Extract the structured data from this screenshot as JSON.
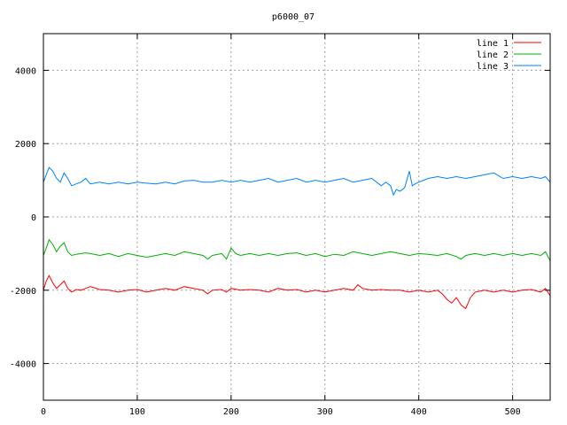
{
  "chart_data": {
    "type": "line",
    "title": "p6000_07",
    "xlabel": "",
    "ylabel": "",
    "xlim": [
      0,
      540
    ],
    "ylim": [
      -5000,
      5000
    ],
    "x_ticks": [
      0,
      100,
      200,
      300,
      400,
      500
    ],
    "y_ticks": [
      -4000,
      -2000,
      0,
      2000,
      4000
    ],
    "grid": true,
    "legend_position": "top-right",
    "series": [
      {
        "name": "line 1",
        "color": "#ff0000",
        "x": [
          0,
          3,
          6,
          10,
          14,
          18,
          22,
          26,
          30,
          35,
          40,
          45,
          50,
          60,
          70,
          80,
          90,
          100,
          110,
          120,
          130,
          140,
          150,
          160,
          170,
          175,
          180,
          190,
          195,
          200,
          210,
          220,
          230,
          240,
          250,
          260,
          270,
          280,
          290,
          300,
          310,
          320,
          330,
          335,
          340,
          350,
          360,
          370,
          380,
          390,
          400,
          410,
          420,
          425,
          430,
          435,
          440,
          445,
          450,
          455,
          460,
          470,
          480,
          490,
          500,
          510,
          520,
          530,
          535,
          540
        ],
        "y": [
          -2000,
          -1750,
          -1600,
          -1800,
          -1950,
          -1850,
          -1750,
          -1950,
          -2050,
          -1980,
          -2000,
          -1950,
          -1900,
          -1980,
          -2000,
          -2050,
          -2000,
          -1980,
          -2050,
          -2000,
          -1950,
          -2000,
          -1900,
          -1950,
          -2000,
          -2100,
          -2000,
          -1980,
          -2050,
          -1950,
          -2000,
          -1980,
          -2000,
          -2050,
          -1950,
          -2000,
          -1980,
          -2050,
          -2000,
          -2050,
          -2000,
          -1950,
          -2000,
          -1850,
          -1950,
          -2000,
          -1980,
          -2000,
          -2000,
          -2050,
          -2000,
          -2050,
          -2000,
          -2100,
          -2250,
          -2350,
          -2200,
          -2400,
          -2500,
          -2200,
          -2050,
          -2000,
          -2050,
          -2000,
          -2050,
          -2000,
          -1980,
          -2050,
          -1950,
          -2150
        ]
      },
      {
        "name": "line 2",
        "color": "#00b000",
        "x": [
          0,
          3,
          6,
          10,
          14,
          18,
          22,
          26,
          30,
          35,
          40,
          45,
          50,
          60,
          70,
          80,
          90,
          100,
          110,
          120,
          130,
          140,
          150,
          160,
          170,
          175,
          180,
          190,
          195,
          200,
          205,
          210,
          220,
          230,
          240,
          250,
          260,
          270,
          280,
          290,
          300,
          310,
          320,
          330,
          340,
          350,
          360,
          370,
          380,
          390,
          400,
          410,
          420,
          430,
          440,
          445,
          450,
          460,
          470,
          480,
          490,
          500,
          510,
          520,
          530,
          535,
          540
        ],
        "y": [
          -1050,
          -850,
          -620,
          -750,
          -950,
          -800,
          -700,
          -950,
          -1050,
          -1020,
          -1000,
          -980,
          -1000,
          -1050,
          -1000,
          -1080,
          -1000,
          -1050,
          -1100,
          -1050,
          -1000,
          -1050,
          -950,
          -1000,
          -1050,
          -1150,
          -1050,
          -1000,
          -1150,
          -850,
          -1000,
          -1050,
          -1000,
          -1050,
          -1000,
          -1050,
          -1000,
          -980,
          -1050,
          -1000,
          -1080,
          -1020,
          -1050,
          -950,
          -1000,
          -1050,
          -1000,
          -950,
          -1000,
          -1050,
          -1000,
          -1020,
          -1050,
          -1000,
          -1080,
          -1150,
          -1050,
          -1000,
          -1050,
          -1000,
          -1050,
          -1000,
          -1050,
          -1000,
          -1050,
          -950,
          -1200
        ]
      },
      {
        "name": "line 3",
        "color": "#0080ff",
        "x": [
          0,
          3,
          6,
          10,
          14,
          18,
          22,
          26,
          30,
          35,
          40,
          45,
          50,
          60,
          70,
          80,
          90,
          100,
          110,
          120,
          130,
          140,
          150,
          160,
          170,
          180,
          190,
          200,
          210,
          220,
          230,
          240,
          250,
          260,
          270,
          280,
          290,
          300,
          310,
          320,
          330,
          340,
          350,
          355,
          360,
          365,
          370,
          373,
          376,
          380,
          385,
          390,
          393,
          396,
          400,
          405,
          410,
          420,
          430,
          440,
          450,
          460,
          470,
          480,
          490,
          500,
          510,
          520,
          530,
          535,
          540
        ],
        "y": [
          950,
          1150,
          1350,
          1250,
          1050,
          950,
          1200,
          1050,
          850,
          900,
          950,
          1050,
          900,
          950,
          900,
          950,
          900,
          950,
          920,
          900,
          950,
          900,
          980,
          1000,
          950,
          950,
          1000,
          950,
          1000,
          950,
          1000,
          1050,
          950,
          1000,
          1050,
          950,
          1000,
          950,
          1000,
          1050,
          950,
          1000,
          1050,
          950,
          850,
          950,
          850,
          600,
          750,
          700,
          800,
          1250,
          850,
          900,
          950,
          1000,
          1050,
          1100,
          1050,
          1100,
          1050,
          1100,
          1150,
          1200,
          1050,
          1100,
          1050,
          1100,
          1050,
          1100,
          950
        ]
      }
    ]
  }
}
